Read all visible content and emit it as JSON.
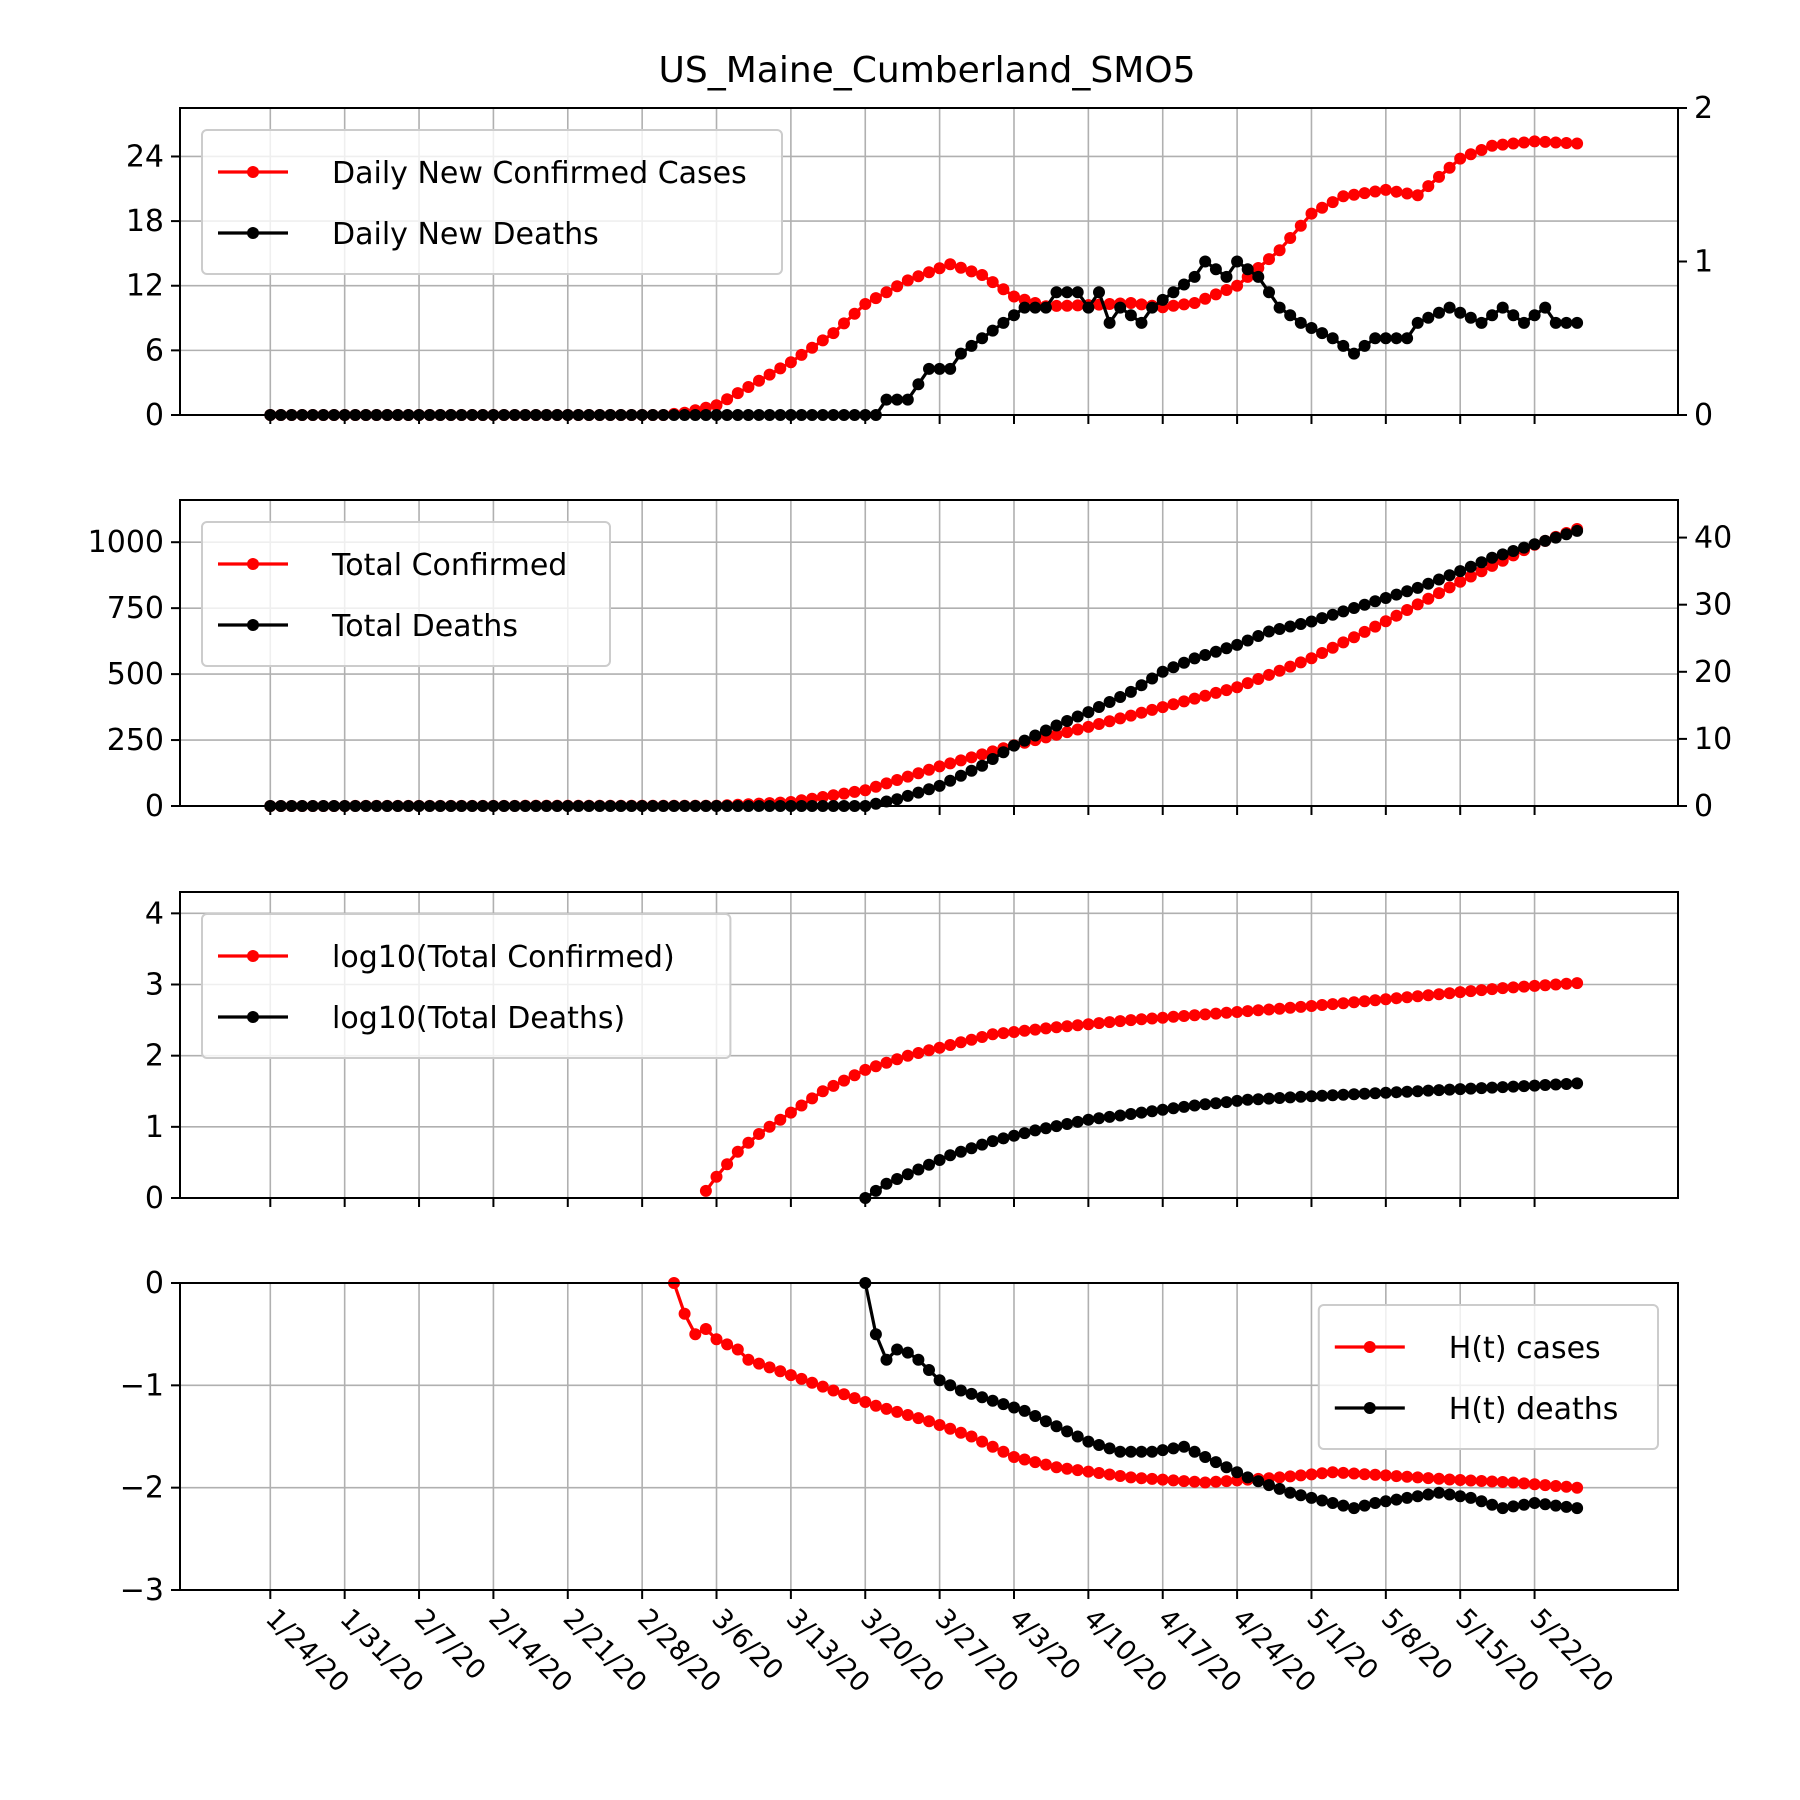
{
  "title": "US_Maine_Cumberland_SMO5",
  "x_tick_labels": [
    "1/24/20",
    "1/31/20",
    "2/7/20",
    "2/14/20",
    "2/21/20",
    "2/28/20",
    "3/6/20",
    "3/13/20",
    "3/20/20",
    "3/27/20",
    "4/3/20",
    "4/10/20",
    "4/17/20",
    "4/24/20",
    "5/1/20",
    "5/8/20",
    "5/15/20",
    "5/22/20"
  ],
  "colors": {
    "cases": "#ff0000",
    "deaths": "#000000",
    "grid": "#b0b0b0"
  },
  "chart_data": [
    {
      "type": "line",
      "x": {
        "start": "2020-01-24",
        "end": "2020-05-26"
      },
      "y_left": {
        "lim": [
          0,
          28.5
        ],
        "ticks": [
          0,
          6,
          12,
          18,
          24
        ],
        "tick_labels": [
          "0",
          "6",
          "12",
          "18",
          "24"
        ]
      },
      "y_right": {
        "lim": [
          0,
          2.0
        ],
        "ticks": [
          0,
          1,
          2
        ],
        "tick_labels": [
          "0",
          "1",
          "2"
        ]
      },
      "legend": {
        "position": "upper-left"
      },
      "grid": true,
      "series": [
        {
          "name": "Daily New Confirmed Cases",
          "color": "#ff0000",
          "axis": "left",
          "points": [
            [
              "2020-01-24",
              0
            ],
            [
              "2020-03-01",
              0
            ],
            [
              "2020-03-03",
              0.2
            ],
            [
              "2020-03-06",
              0.9
            ],
            [
              "2020-03-09",
              2.6
            ],
            [
              "2020-03-13",
              4.9
            ],
            [
              "2020-03-17",
              7.6
            ],
            [
              "2020-03-20",
              10.3
            ],
            [
              "2020-03-24",
              12.5
            ],
            [
              "2020-03-28",
              14.0
            ],
            [
              "2020-03-31",
              13.0
            ],
            [
              "2020-04-03",
              11.0
            ],
            [
              "2020-04-06",
              10.1
            ],
            [
              "2020-04-10",
              10.2
            ],
            [
              "2020-04-14",
              10.4
            ],
            [
              "2020-04-17",
              10.0
            ],
            [
              "2020-04-20",
              10.4
            ],
            [
              "2020-04-24",
              12.0
            ],
            [
              "2020-04-28",
              15.3
            ],
            [
              "2020-05-01",
              18.7
            ],
            [
              "2020-05-04",
              20.3
            ],
            [
              "2020-05-08",
              20.9
            ],
            [
              "2020-05-11",
              20.4
            ],
            [
              "2020-05-15",
              23.8
            ],
            [
              "2020-05-18",
              25.0
            ],
            [
              "2020-05-22",
              25.4
            ],
            [
              "2020-05-26",
              25.2
            ]
          ]
        },
        {
          "name": "Daily New Deaths",
          "color": "#000000",
          "axis": "right",
          "points": [
            [
              "2020-01-24",
              0
            ],
            [
              "2020-03-21",
              0
            ],
            [
              "2020-03-22",
              0.1
            ],
            [
              "2020-03-24",
              0.1
            ],
            [
              "2020-03-25",
              0.2
            ],
            [
              "2020-03-26",
              0.3
            ],
            [
              "2020-03-28",
              0.3
            ],
            [
              "2020-03-29",
              0.4
            ],
            [
              "2020-03-31",
              0.5
            ],
            [
              "2020-04-02",
              0.6
            ],
            [
              "2020-04-04",
              0.7
            ],
            [
              "2020-04-06",
              0.7
            ],
            [
              "2020-04-07",
              0.8
            ],
            [
              "2020-04-09",
              0.8
            ],
            [
              "2020-04-10",
              0.7
            ],
            [
              "2020-04-11",
              0.8
            ],
            [
              "2020-04-12",
              0.6
            ],
            [
              "2020-04-13",
              0.7
            ],
            [
              "2020-04-15",
              0.6
            ],
            [
              "2020-04-16",
              0.7
            ],
            [
              "2020-04-18",
              0.8
            ],
            [
              "2020-04-20",
              0.9
            ],
            [
              "2020-04-21",
              1.0
            ],
            [
              "2020-04-23",
              0.9
            ],
            [
              "2020-04-24",
              1.0
            ],
            [
              "2020-04-26",
              0.9
            ],
            [
              "2020-04-28",
              0.7
            ],
            [
              "2020-04-30",
              0.6
            ],
            [
              "2020-05-03",
              0.5
            ],
            [
              "2020-05-05",
              0.4
            ],
            [
              "2020-05-07",
              0.5
            ],
            [
              "2020-05-10",
              0.5
            ],
            [
              "2020-05-11",
              0.6
            ],
            [
              "2020-05-14",
              0.7
            ],
            [
              "2020-05-17",
              0.6
            ],
            [
              "2020-05-19",
              0.7
            ],
            [
              "2020-05-21",
              0.6
            ],
            [
              "2020-05-23",
              0.7
            ],
            [
              "2020-05-24",
              0.6
            ],
            [
              "2020-05-26",
              0.6
            ]
          ]
        }
      ]
    },
    {
      "type": "line",
      "x": {
        "start": "2020-01-24",
        "end": "2020-05-26"
      },
      "y_left": {
        "lim": [
          0,
          1160
        ],
        "ticks": [
          0,
          250,
          500,
          750,
          1000
        ],
        "tick_labels": [
          "0",
          "250",
          "500",
          "750",
          "1000"
        ]
      },
      "y_right": {
        "lim": [
          0,
          45.6
        ],
        "ticks": [
          0,
          10,
          20,
          30,
          40
        ],
        "tick_labels": [
          "0",
          "10",
          "20",
          "30",
          "40"
        ]
      },
      "legend": {
        "position": "upper-left"
      },
      "grid": true,
      "series": [
        {
          "name": "Total Confirmed",
          "color": "#ff0000",
          "axis": "left",
          "points": [
            [
              "2020-01-24",
              0
            ],
            [
              "2020-03-06",
              1
            ],
            [
              "2020-03-13",
              15
            ],
            [
              "2020-03-20",
              60
            ],
            [
              "2020-03-27",
              150
            ],
            [
              "2020-04-03",
              230
            ],
            [
              "2020-04-10",
              300
            ],
            [
              "2020-04-17",
              375
            ],
            [
              "2020-04-24",
              450
            ],
            [
              "2020-05-01",
              560
            ],
            [
              "2020-05-08",
              700
            ],
            [
              "2020-05-15",
              850
            ],
            [
              "2020-05-22",
              990
            ],
            [
              "2020-05-26",
              1050
            ]
          ]
        },
        {
          "name": "Total Deaths",
          "color": "#000000",
          "axis": "right",
          "points": [
            [
              "2020-01-24",
              0
            ],
            [
              "2020-03-20",
              0
            ],
            [
              "2020-03-23",
              1
            ],
            [
              "2020-03-27",
              3
            ],
            [
              "2020-03-31",
              6
            ],
            [
              "2020-04-03",
              9
            ],
            [
              "2020-04-07",
              12
            ],
            [
              "2020-04-10",
              14
            ],
            [
              "2020-04-14",
              17
            ],
            [
              "2020-04-17",
              20
            ],
            [
              "2020-04-20",
              22
            ],
            [
              "2020-04-24",
              24
            ],
            [
              "2020-04-27",
              26
            ],
            [
              "2020-05-01",
              27.5
            ],
            [
              "2020-05-04",
              29
            ],
            [
              "2020-05-08",
              31
            ],
            [
              "2020-05-11",
              32.5
            ],
            [
              "2020-05-15",
              35
            ],
            [
              "2020-05-18",
              37
            ],
            [
              "2020-05-22",
              39
            ],
            [
              "2020-05-26",
              41
            ]
          ]
        }
      ]
    },
    {
      "type": "line",
      "x": {
        "start": "2020-01-24",
        "end": "2020-05-26"
      },
      "y_left": {
        "lim": [
          0,
          4.3
        ],
        "ticks": [
          0,
          1,
          2,
          3,
          4
        ],
        "tick_labels": [
          "0",
          "1",
          "2",
          "3",
          "4"
        ]
      },
      "legend": {
        "position": "upper-left"
      },
      "grid": true,
      "series": [
        {
          "name": "log10(Total Confirmed)",
          "color": "#ff0000",
          "axis": "left",
          "points": [
            [
              "2020-03-05",
              0.1
            ],
            [
              "2020-03-06",
              0.3
            ],
            [
              "2020-03-08",
              0.65
            ],
            [
              "2020-03-10",
              0.9
            ],
            [
              "2020-03-13",
              1.2
            ],
            [
              "2020-03-16",
              1.5
            ],
            [
              "2020-03-20",
              1.8
            ],
            [
              "2020-03-24",
              2.0
            ],
            [
              "2020-03-28",
              2.15
            ],
            [
              "2020-04-01",
              2.3
            ],
            [
              "2020-04-07",
              2.4
            ],
            [
              "2020-04-14",
              2.5
            ],
            [
              "2020-04-21",
              2.58
            ],
            [
              "2020-04-28",
              2.66
            ],
            [
              "2020-05-05",
              2.75
            ],
            [
              "2020-05-12",
              2.85
            ],
            [
              "2020-05-19",
              2.95
            ],
            [
              "2020-05-26",
              3.02
            ]
          ]
        },
        {
          "name": "log10(Total Deaths)",
          "color": "#000000",
          "axis": "left",
          "points": [
            [
              "2020-03-20",
              0
            ],
            [
              "2020-03-22",
              0.2
            ],
            [
              "2020-03-25",
              0.4
            ],
            [
              "2020-03-28",
              0.6
            ],
            [
              "2020-04-01",
              0.8
            ],
            [
              "2020-04-05",
              0.95
            ],
            [
              "2020-04-10",
              1.1
            ],
            [
              "2020-04-15",
              1.2
            ],
            [
              "2020-04-20",
              1.3
            ],
            [
              "2020-04-25",
              1.38
            ],
            [
              "2020-05-01",
              1.43
            ],
            [
              "2020-05-08",
              1.48
            ],
            [
              "2020-05-15",
              1.53
            ],
            [
              "2020-05-22",
              1.58
            ],
            [
              "2020-05-26",
              1.61
            ]
          ]
        }
      ]
    },
    {
      "type": "line",
      "x": {
        "start": "2020-01-24",
        "end": "2020-05-26"
      },
      "y_left": {
        "lim": [
          -3,
          0
        ],
        "ticks": [
          -3,
          -2,
          -1,
          0
        ],
        "tick_labels": [
          "−3",
          "−2",
          "−1",
          "0"
        ]
      },
      "legend": {
        "position": "upper-right"
      },
      "grid": true,
      "series": [
        {
          "name": "H(t) cases",
          "color": "#ff0000",
          "axis": "left",
          "points": [
            [
              "2020-03-02",
              0
            ],
            [
              "2020-03-03",
              -0.3
            ],
            [
              "2020-03-04",
              -0.5
            ],
            [
              "2020-03-05",
              -0.45
            ],
            [
              "2020-03-06",
              -0.55
            ],
            [
              "2020-03-08",
              -0.65
            ],
            [
              "2020-03-09",
              -0.75
            ],
            [
              "2020-03-13",
              -0.9
            ],
            [
              "2020-03-17",
              -1.05
            ],
            [
              "2020-03-21",
              -1.2
            ],
            [
              "2020-03-26",
              -1.35
            ],
            [
              "2020-03-30",
              -1.5
            ],
            [
              "2020-04-03",
              -1.7
            ],
            [
              "2020-04-07",
              -1.8
            ],
            [
              "2020-04-14",
              -1.9
            ],
            [
              "2020-04-21",
              -1.95
            ],
            [
              "2020-04-28",
              -1.9
            ],
            [
              "2020-05-03",
              -1.85
            ],
            [
              "2020-05-08",
              -1.88
            ],
            [
              "2020-05-14",
              -1.92
            ],
            [
              "2020-05-20",
              -1.95
            ],
            [
              "2020-05-26",
              -2.0
            ]
          ]
        },
        {
          "name": "H(t) deaths",
          "color": "#000000",
          "axis": "left",
          "points": [
            [
              "2020-03-20",
              0
            ],
            [
              "2020-03-21",
              -0.5
            ],
            [
              "2020-03-22",
              -0.75
            ],
            [
              "2020-03-23",
              -0.65
            ],
            [
              "2020-03-24",
              -0.68
            ],
            [
              "2020-03-25",
              -0.75
            ],
            [
              "2020-03-27",
              -0.95
            ],
            [
              "2020-03-29",
              -1.05
            ],
            [
              "2020-04-01",
              -1.15
            ],
            [
              "2020-04-04",
              -1.25
            ],
            [
              "2020-04-07",
              -1.4
            ],
            [
              "2020-04-10",
              -1.55
            ],
            [
              "2020-04-13",
              -1.65
            ],
            [
              "2020-04-16",
              -1.65
            ],
            [
              "2020-04-19",
              -1.6
            ],
            [
              "2020-04-22",
              -1.75
            ],
            [
              "2020-04-25",
              -1.9
            ],
            [
              "2020-04-29",
              -2.05
            ],
            [
              "2020-05-01",
              -2.1
            ],
            [
              "2020-05-03",
              -2.15
            ],
            [
              "2020-05-05",
              -2.2
            ],
            [
              "2020-05-07",
              -2.15
            ],
            [
              "2020-05-10",
              -2.1
            ],
            [
              "2020-05-13",
              -2.05
            ],
            [
              "2020-05-16",
              -2.1
            ],
            [
              "2020-05-19",
              -2.2
            ],
            [
              "2020-05-22",
              -2.15
            ],
            [
              "2020-05-26",
              -2.2
            ]
          ]
        }
      ]
    }
  ]
}
